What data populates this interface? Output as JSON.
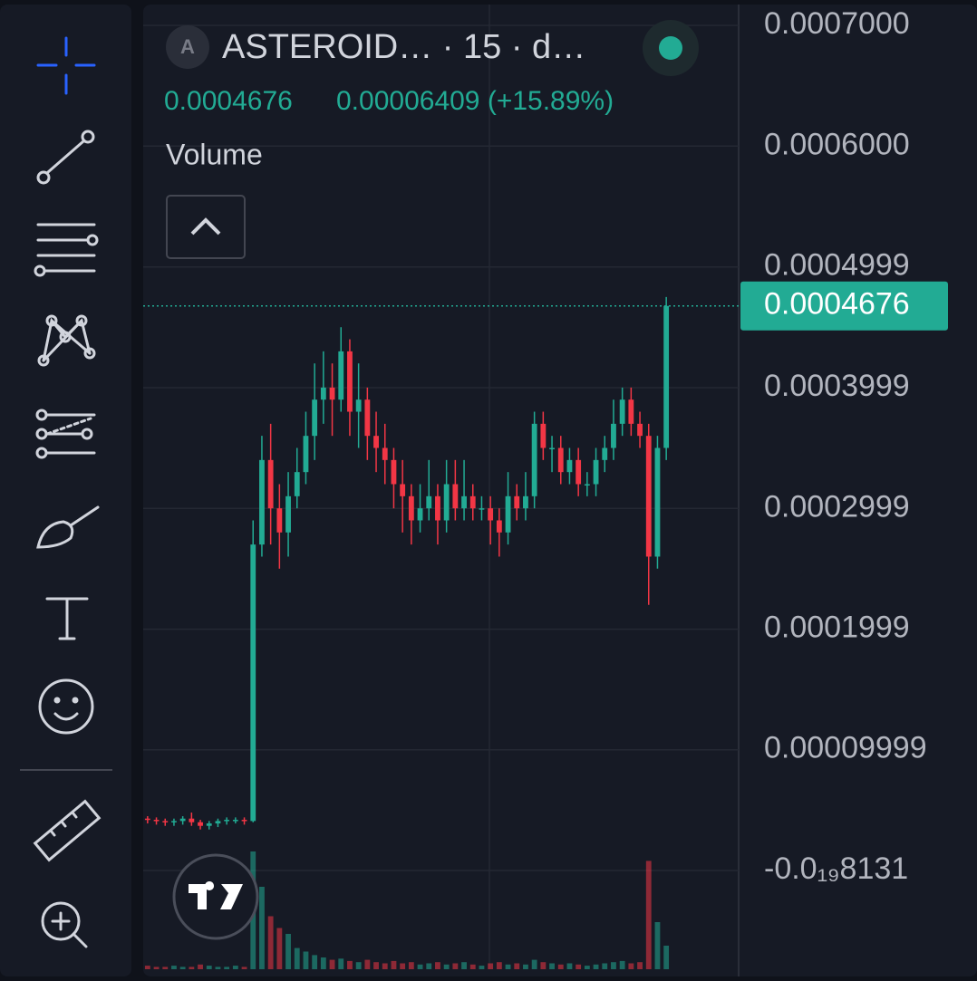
{
  "chart_data": {
    "type": "candlestick",
    "title": "ASTEROID… · 15 · d…",
    "symbol_badge": "A",
    "change_label": "0.00006409 (+15.89%)",
    "volume_label": "Volume",
    "up_color": "#22ab94",
    "down_color": "#f23645",
    "grid": true,
    "open": [
      4.3e-05,
      4.2e-05,
      4.1e-05,
      4e-05,
      4.1e-05,
      4.3e-05,
      4e-05,
      3.7e-05,
      3.9e-05,
      4.1e-05,
      4.2e-05,
      4.2e-05,
      4.1e-05,
      0.00027,
      0.00034,
      0.0003,
      0.00028,
      0.00031,
      0.00033,
      0.00036,
      0.00039,
      0.0004,
      0.00039,
      0.00043,
      0.00038,
      0.00039,
      0.00036,
      0.00035,
      0.00034,
      0.00032,
      0.00031,
      0.00029,
      0.0003,
      0.00031,
      0.00029,
      0.00032,
      0.0003,
      0.00031,
      0.0003,
      0.0003,
      0.00029,
      0.00028,
      0.00031,
      0.0003,
      0.00031,
      0.00037,
      0.00035,
      0.00035,
      0.00033,
      0.00034,
      0.00032,
      0.00032,
      0.00034,
      0.00035,
      0.00037,
      0.00039,
      0.00037,
      0.00036,
      0.00026,
      0.00035
    ],
    "high": [
      4.5e-05,
      4.4e-05,
      4.3e-05,
      4.3e-05,
      4.5e-05,
      4.8e-05,
      4.2e-05,
      4.1e-05,
      4.3e-05,
      4.4e-05,
      4.4e-05,
      4.4e-05,
      0.00029,
      0.00036,
      0.00037,
      0.00032,
      0.00033,
      0.00035,
      0.00038,
      0.00042,
      0.00043,
      0.00042,
      0.00045,
      0.00044,
      0.00042,
      0.0004,
      0.00038,
      0.00037,
      0.00035,
      0.00034,
      0.00032,
      0.00032,
      0.00034,
      0.00032,
      0.00034,
      0.00034,
      0.00034,
      0.00032,
      0.00031,
      0.00031,
      0.0003,
      0.00033,
      0.00032,
      0.00033,
      0.00038,
      0.00038,
      0.00036,
      0.00036,
      0.00035,
      0.00035,
      0.00033,
      0.00035,
      0.00036,
      0.00039,
      0.0004,
      0.0004,
      0.00038,
      0.00037,
      0.00036,
      0.000475
    ],
    "low": [
      3.9e-05,
      3.8e-05,
      3.7e-05,
      3.7e-05,
      3.8e-05,
      3.7e-05,
      3.4e-05,
      3.4e-05,
      3.6e-05,
      3.8e-05,
      3.9e-05,
      3.8e-05,
      4e-05,
      0.00026,
      0.00027,
      0.00025,
      0.00026,
      0.0003,
      0.00032,
      0.00034,
      0.00037,
      0.00036,
      0.00038,
      0.00036,
      0.00035,
      0.00034,
      0.00033,
      0.00032,
      0.0003,
      0.00028,
      0.00027,
      0.00028,
      0.00029,
      0.00027,
      0.00028,
      0.00029,
      0.00029,
      0.00029,
      0.00029,
      0.00027,
      0.00026,
      0.00027,
      0.00029,
      0.00029,
      0.0003,
      0.00034,
      0.00033,
      0.00032,
      0.00032,
      0.00031,
      0.00031,
      0.00031,
      0.00033,
      0.00034,
      0.00036,
      0.00036,
      0.00035,
      0.00022,
      0.00025,
      0.00034
    ],
    "close": [
      4.2e-05,
      4.1e-05,
      4e-05,
      4.1e-05,
      4.3e-05,
      4e-05,
      3.7e-05,
      3.9e-05,
      4.1e-05,
      4.2e-05,
      4.2e-05,
      4.1e-05,
      0.00027,
      0.00034,
      0.0003,
      0.00028,
      0.00031,
      0.00033,
      0.00036,
      0.00039,
      0.0004,
      0.00039,
      0.00043,
      0.00038,
      0.00039,
      0.00036,
      0.00035,
      0.00034,
      0.00032,
      0.00031,
      0.00029,
      0.0003,
      0.00031,
      0.00029,
      0.00032,
      0.0003,
      0.00031,
      0.0003,
      0.0003,
      0.00029,
      0.00028,
      0.00031,
      0.0003,
      0.00031,
      0.00037,
      0.00035,
      0.00035,
      0.00033,
      0.00034,
      0.00032,
      0.00032,
      0.00034,
      0.00035,
      0.00037,
      0.00039,
      0.00037,
      0.00036,
      0.00026,
      0.00035,
      0.0004676
    ],
    "volume": [
      3,
      2,
      2,
      3,
      2,
      2,
      4,
      3,
      2,
      2,
      3,
      2,
      100,
      70,
      45,
      35,
      30,
      18,
      15,
      12,
      10,
      8,
      9,
      7,
      6,
      8,
      6,
      5,
      7,
      5,
      6,
      4,
      5,
      6,
      4,
      5,
      6,
      4,
      3,
      5,
      6,
      4,
      5,
      4,
      8,
      6,
      5,
      4,
      5,
      4,
      3,
      4,
      5,
      6,
      7,
      5,
      6,
      92,
      40,
      20
    ],
    "ylim": [
      -8.175e-05,
      0.00071725
    ],
    "yticks": [
      {
        "value": 0.0007,
        "label": "0.0007000"
      },
      {
        "value": 0.0006,
        "label": "0.0006000"
      },
      {
        "value": 0.0004999,
        "label": "0.0004999"
      },
      {
        "value": 0.0003999,
        "label": "0.0003999"
      },
      {
        "value": 0.0002999,
        "label": "0.0002999"
      },
      {
        "value": 0.0001999,
        "label": "0.0001999"
      },
      {
        "value": 9.999e-05,
        "label": "0.00009999"
      },
      {
        "value": -8.131e-20,
        "label": "-0.0₁₉8131"
      }
    ]
  }
}
